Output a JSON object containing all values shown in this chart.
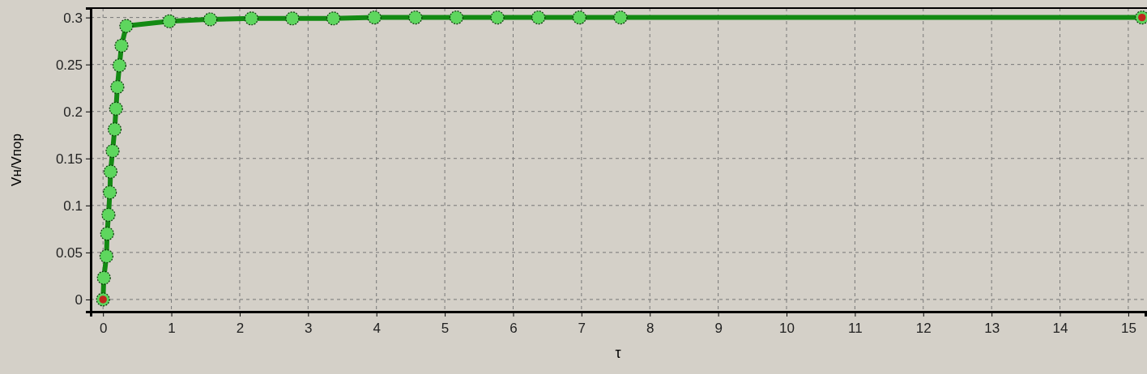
{
  "chart_data": {
    "type": "line",
    "xlabel": "τ",
    "ylabel": "Vн/Vпор",
    "xlim": [
      -0.18,
      15.25
    ],
    "ylim": [
      -0.013,
      0.31
    ],
    "xticks": [
      0,
      1,
      2,
      3,
      4,
      5,
      6,
      7,
      8,
      9,
      10,
      11,
      12,
      13,
      14,
      15
    ],
    "yticks": [
      0,
      {
        "value": 0.05,
        "label": "0.05"
      },
      {
        "value": 0.1,
        "label": "0.1"
      },
      {
        "value": 0.15,
        "label": "0.15"
      },
      {
        "value": 0.2,
        "label": "0.2"
      },
      {
        "value": 0.25,
        "label": "0.25"
      },
      {
        "value": 0.3,
        "label": "0.3"
      }
    ],
    "grid": true,
    "marker": "circle",
    "line_style": "solid",
    "series": [
      {
        "color": "#138a13",
        "x": [
          0,
          0.012,
          0.05,
          0.06,
          0.08,
          0.1,
          0.11,
          0.14,
          0.17,
          0.19,
          0.21,
          0.24,
          0.27,
          0.34,
          0.97,
          1.57,
          2.17,
          2.77,
          3.37,
          3.97,
          4.57,
          5.17,
          5.77,
          6.37,
          6.97,
          7.57,
          15.2
        ],
        "values": [
          0,
          0.023,
          0.046,
          0.07,
          0.09,
          0.114,
          0.136,
          0.158,
          0.181,
          0.203,
          0.226,
          0.249,
          0.27,
          0.291,
          0.296,
          0.298,
          0.299,
          0.299,
          0.299,
          0.3,
          0.3,
          0.3,
          0.3,
          0.3,
          0.3,
          0.3,
          0.3
        ]
      },
      {
        "type": "scatter",
        "color": "#c0281e",
        "x": [
          0,
          15.2
        ],
        "values": [
          0,
          0.3
        ]
      }
    ]
  }
}
